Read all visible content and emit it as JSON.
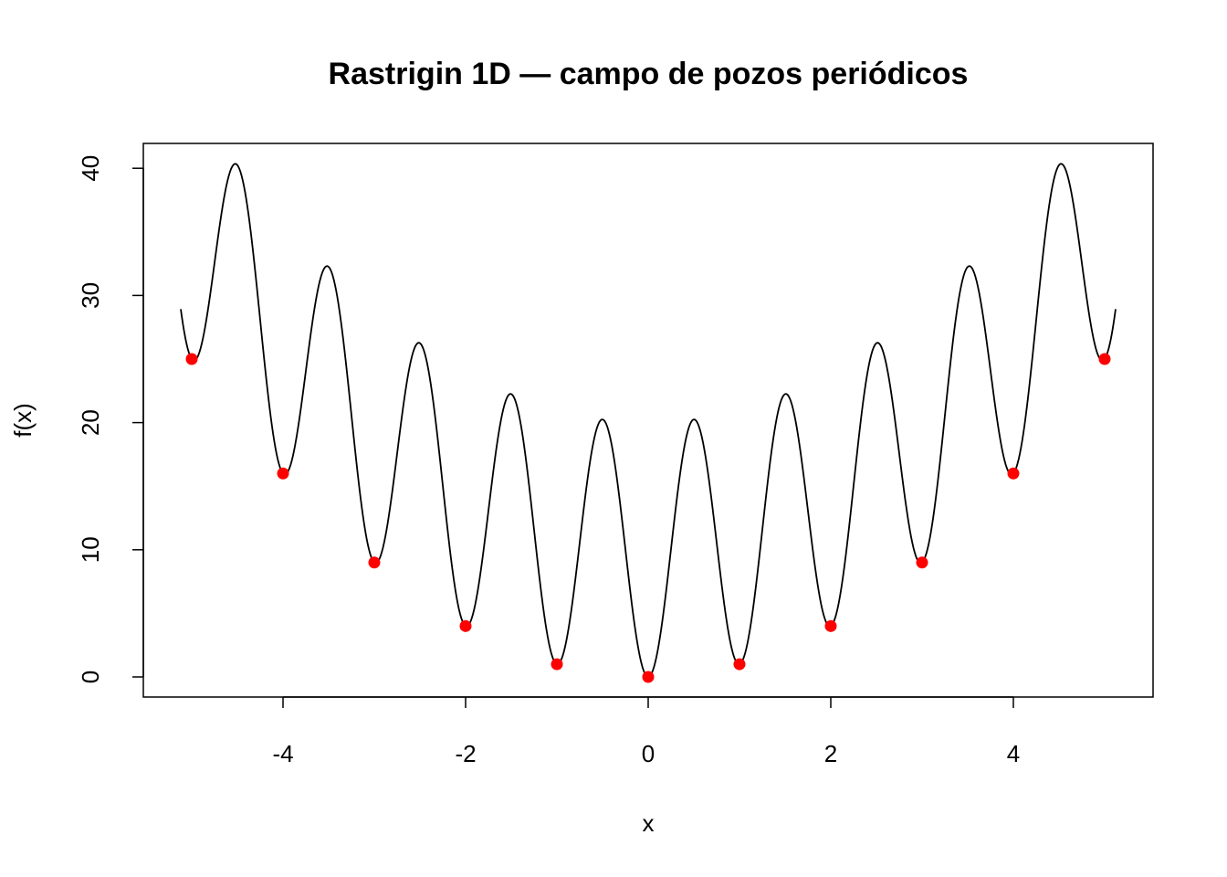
{
  "chart_data": {
    "type": "line",
    "title": "Rastrigin 1D — campo de pozos periódicos",
    "xlabel": "x",
    "ylabel": "f(x)",
    "xlim": [
      -5.12,
      5.12
    ],
    "ylim": [
      0,
      40.35
    ],
    "x_ticks": [
      -4,
      -2,
      0,
      2,
      4
    ],
    "x_tick_labels": [
      "-4",
      "-2",
      "0",
      "2",
      "4"
    ],
    "y_ticks": [
      0,
      10,
      20,
      30,
      40
    ],
    "y_tick_labels": [
      "0",
      "10",
      "20",
      "30",
      "40"
    ],
    "grid": false,
    "legend": "none",
    "series": [
      {
        "kind": "line",
        "function": "10 + x^2 - 10*cos(2*pi*x)",
        "x_range": [
          -5.12,
          5.12
        ],
        "color": "#000000"
      },
      {
        "kind": "points",
        "color": "#ff0000",
        "x": [
          -5,
          -4,
          -3,
          -2,
          -1,
          0,
          1,
          2,
          3,
          4,
          5
        ],
        "y": [
          25,
          16,
          9,
          4,
          1,
          0,
          1,
          4,
          9,
          16,
          25
        ]
      }
    ]
  }
}
